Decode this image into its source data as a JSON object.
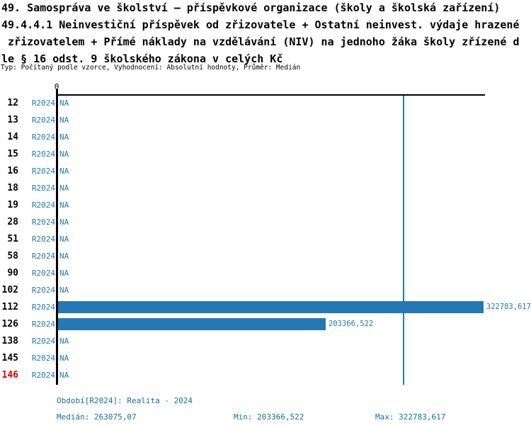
{
  "title": {
    "line1": "49. Samospráva ve školství – příspěvkové organizace (školy a školská zařízení)",
    "line2": "49.4.4.1 Neinvestiční příspěvek od zřizovatele + Ostatní neinvest. výdaje hrazené",
    "line3": " zřizovatelem + Přímé náklady na vzdělávání (NIV) na jednoho žáka školy zřízené d",
    "line4": "le § 16 odst. 9 školského zákona v celých Kč",
    "subtitle": "Typ: Počítaný podle vzorce, Vyhodnocení: Absolutní hodnoty, Průměr: Medián"
  },
  "chart_data": {
    "type": "bar",
    "orientation": "horizontal",
    "x_axis": {
      "zero_label": "0",
      "xlim": [
        0,
        360000
      ],
      "gridlines": false
    },
    "median_line_value": 263075.07,
    "colors": {
      "bar": "#2478b4",
      "value_text": "#2478b4",
      "axis": "#000000",
      "footer_text": "#17708e",
      "highlight_row": "#dd0000"
    },
    "rows": [
      {
        "id": "12",
        "period": "R2024",
        "value": null,
        "display": "NA"
      },
      {
        "id": "13",
        "period": "R2024",
        "value": null,
        "display": "NA"
      },
      {
        "id": "14",
        "period": "R2024",
        "value": null,
        "display": "NA"
      },
      {
        "id": "15",
        "period": "R2024",
        "value": null,
        "display": "NA"
      },
      {
        "id": "16",
        "period": "R2024",
        "value": null,
        "display": "NA"
      },
      {
        "id": "18",
        "period": "R2024",
        "value": null,
        "display": "NA"
      },
      {
        "id": "19",
        "period": "R2024",
        "value": null,
        "display": "NA"
      },
      {
        "id": "28",
        "period": "R2024",
        "value": null,
        "display": "NA"
      },
      {
        "id": "51",
        "period": "R2024",
        "value": null,
        "display": "NA"
      },
      {
        "id": "58",
        "period": "R2024",
        "value": null,
        "display": "NA"
      },
      {
        "id": "90",
        "period": "R2024",
        "value": null,
        "display": "NA"
      },
      {
        "id": "102",
        "period": "R2024",
        "value": null,
        "display": "NA"
      },
      {
        "id": "112",
        "period": "R2024",
        "value": 322783.617,
        "display": "322783,617"
      },
      {
        "id": "126",
        "period": "R2024",
        "value": 203366.522,
        "display": "203366,522"
      },
      {
        "id": "138",
        "period": "R2024",
        "value": null,
        "display": "NA"
      },
      {
        "id": "145",
        "period": "R2024",
        "value": null,
        "display": "NA"
      },
      {
        "id": "146",
        "period": "R2024",
        "value": null,
        "display": "NA",
        "highlight": true
      }
    ],
    "stats": {
      "median": 263075.07,
      "min": 203366.522,
      "max": 322783.617
    },
    "footer": {
      "period_label": "Období[R2024]: Realita - 2024",
      "median_label": "Medián: 263075,07",
      "min_label": "Min: 203366,522",
      "max_label": "Max: 322783,617"
    }
  }
}
